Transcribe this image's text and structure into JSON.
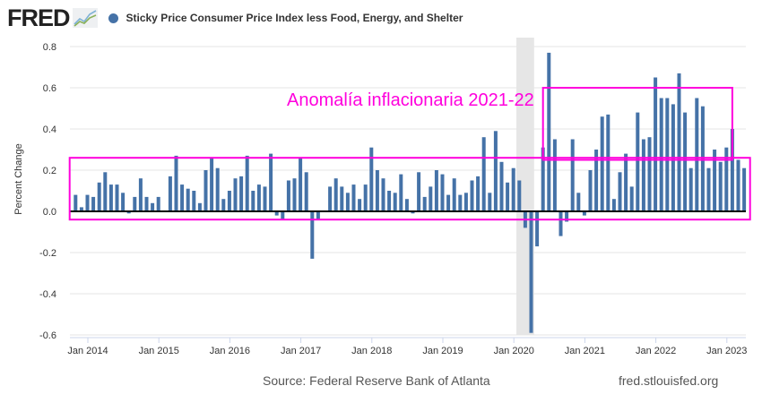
{
  "header": {
    "logo_text": "FRED",
    "legend_label": "Sticky Price Consumer Price Index less Food, Energy, and Shelter"
  },
  "footer": {
    "source": "Source: Federal Reserve Bank of Atlanta",
    "site": "fred.stlouisfed.org"
  },
  "annotation": {
    "label": "Anomalía inflacionaria 2021-22",
    "color": "#ff00dd"
  },
  "chart_data": {
    "type": "bar",
    "title": "Sticky Price Consumer Price Index less Food, Energy, and Shelter",
    "xlabel": "",
    "ylabel": "Percent Change",
    "ylim": [
      -0.6,
      0.8
    ],
    "yticks": [
      "0.8",
      "0.6",
      "0.4",
      "0.2",
      "0.0",
      "-0.2",
      "-0.4",
      "-0.6"
    ],
    "ytick_values": [
      0.8,
      0.6,
      0.4,
      0.2,
      0.0,
      -0.2,
      -0.4,
      -0.6
    ],
    "xticks": [
      "Jan 2014",
      "Jan 2015",
      "Jan 2016",
      "Jan 2017",
      "Jan 2018",
      "Jan 2019",
      "Jan 2020",
      "Jan 2021",
      "Jan 2022",
      "Jan 2023"
    ],
    "start_month": "2013-11",
    "bar_color": "#4572a7",
    "recession": {
      "start": "2020-02",
      "end": "2020-04"
    },
    "grid": true,
    "values": [
      0.08,
      0.02,
      0.08,
      0.07,
      0.14,
      0.19,
      0.13,
      0.13,
      0.09,
      -0.01,
      0.07,
      0.16,
      0.07,
      0.04,
      0.07,
      0.0,
      0.17,
      0.27,
      0.13,
      0.11,
      0.1,
      0.04,
      0.2,
      0.26,
      0.21,
      0.06,
      0.1,
      0.16,
      0.17,
      0.27,
      0.1,
      0.13,
      0.12,
      0.28,
      -0.02,
      -0.04,
      0.15,
      0.16,
      0.26,
      0.19,
      -0.23,
      -0.04,
      0.0,
      0.12,
      0.16,
      0.12,
      0.09,
      0.13,
      0.06,
      0.13,
      0.31,
      0.2,
      0.16,
      0.1,
      0.09,
      0.18,
      0.06,
      -0.01,
      0.19,
      0.07,
      0.12,
      0.2,
      0.18,
      0.08,
      0.16,
      0.08,
      0.09,
      0.15,
      0.17,
      0.36,
      0.09,
      0.39,
      0.24,
      0.14,
      0.21,
      0.15,
      -0.08,
      -0.59,
      -0.17,
      0.31,
      0.77,
      0.35,
      -0.12,
      -0.05,
      0.35,
      0.09,
      -0.02,
      0.2,
      0.3,
      0.46,
      0.47,
      0.06,
      0.19,
      0.28,
      0.12,
      0.48,
      0.35,
      0.36,
      0.65,
      0.55,
      0.55,
      0.52,
      0.67,
      0.48,
      0.21,
      0.55,
      0.51,
      0.21,
      0.3,
      0.24,
      0.31,
      0.4,
      0.25,
      0.21
    ],
    "annotations": [
      {
        "text": "Anomalía inflacionaria 2021-22",
        "box_x": [
          "2020-06",
          "2023-02"
        ],
        "box_y": [
          0.25,
          0.6
        ]
      },
      {
        "box_x": [
          "2013-10",
          "2023-05"
        ],
        "box_y": [
          -0.04,
          0.26
        ]
      }
    ]
  }
}
